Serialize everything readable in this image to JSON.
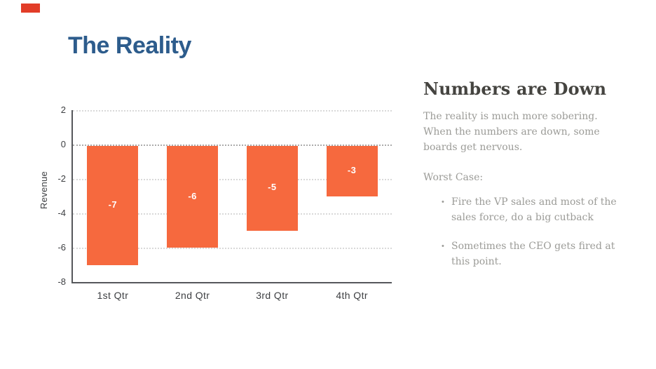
{
  "slide": {
    "title": "The Reality",
    "title_color": "#2d5c8c",
    "accent_color": "#e23d28",
    "background_color": "#ffffff"
  },
  "chart_data": {
    "type": "bar",
    "categories": [
      "1st Qtr",
      "2nd Qtr",
      "3rd Qtr",
      "4th Qtr"
    ],
    "values": [
      -7,
      -6,
      -5,
      -3
    ],
    "bar_labels": [
      "-7",
      "-6",
      "-5",
      "-3"
    ],
    "title": "",
    "xlabel": "",
    "ylabel": "Revenue",
    "yticks": [
      2,
      0,
      -2,
      -4,
      -6,
      -8
    ],
    "ylim": [
      -8,
      2
    ],
    "bar_color": "#f6693e",
    "bar_label_color": "#ffffff",
    "grid": "horizontal-dotted",
    "legend": "none"
  },
  "panel": {
    "heading": "Numbers are Down",
    "paragraph": "The reality is much more sobering. When the numbers are down, some boards get nervous.",
    "subheading": "Worst Case:",
    "bullet_glyph": "•",
    "bullets": [
      "Fire the VP sales and most of the sales force, do a big cutback",
      "Sometimes the CEO gets fired at this point."
    ]
  }
}
